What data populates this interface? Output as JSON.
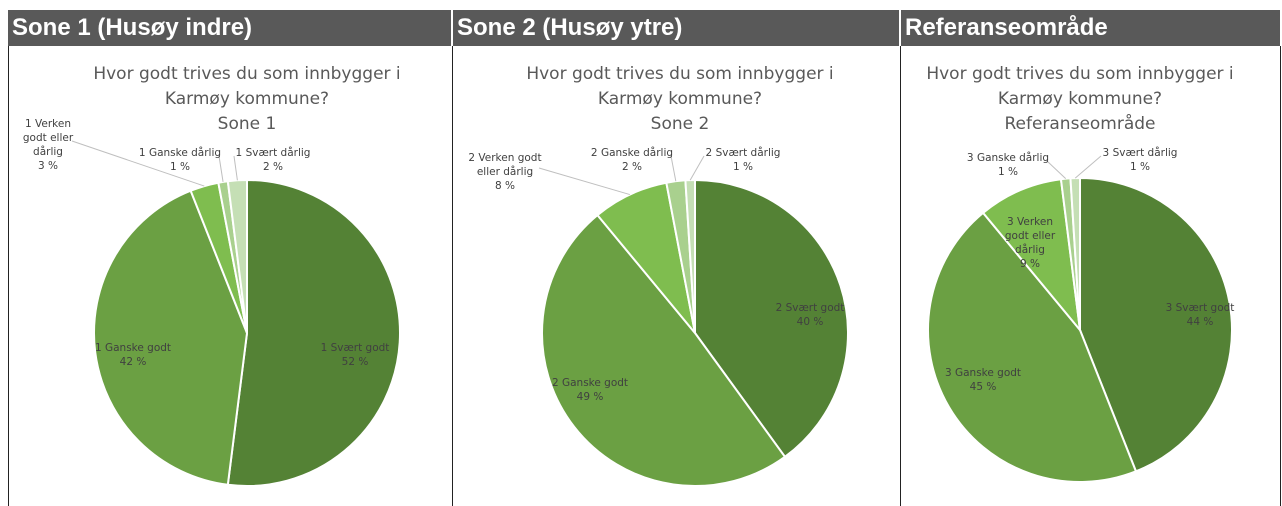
{
  "headers": [
    "Sone 1 (Husøy indre)",
    "Sone 2 (Husøy ytre)",
    "Referanseområde"
  ],
  "chart_data": [
    {
      "type": "pie",
      "title": [
        "Hvor godt trives du som innbygger i",
        "Karmøy kommune?"
      ],
      "subtitle": "Sone 1",
      "categories": [
        "1 Svært godt",
        "1 Ganske godt",
        "1 Verken godt eller dårlig",
        "1 Ganske dårlig",
        "1 Svært dårlig"
      ],
      "values": [
        52,
        42,
        3,
        1,
        2
      ],
      "value_labels": [
        "52 %",
        "42 %",
        "3 %",
        "1 %",
        "2 %"
      ],
      "colors": [
        "#548235",
        "#6ba043",
        "#7fbd4f",
        "#a9d08e",
        "#c5dfb5"
      ]
    },
    {
      "type": "pie",
      "title": [
        "Hvor godt trives du som innbygger i",
        "Karmøy kommune?"
      ],
      "subtitle": "Sone 2",
      "categories": [
        "2 Svært godt",
        "2 Ganske godt",
        "2 Verken godt eller dårlig",
        "2 Ganske dårlig",
        "2 Svært dårlig"
      ],
      "values": [
        40,
        49,
        8,
        2,
        1
      ],
      "value_labels": [
        "40 %",
        "49 %",
        "8 %",
        "2 %",
        "1 %"
      ],
      "colors": [
        "#548235",
        "#6ba043",
        "#7fbd4f",
        "#a9d08e",
        "#c5dfb5"
      ]
    },
    {
      "type": "pie",
      "title": [
        "Hvor godt trives du som innbygger i",
        "Karmøy kommune?"
      ],
      "subtitle": "Referanseområde",
      "categories": [
        "3 Svært godt",
        "3 Ganske godt",
        "3 Verken godt eller dårlig",
        "3 Ganske dårlig",
        "3 Svært dårlig"
      ],
      "values": [
        44,
        45,
        9,
        1,
        1
      ],
      "value_labels": [
        "44 %",
        "45 %",
        "9 %",
        "1 %",
        "1 %"
      ],
      "colors": [
        "#548235",
        "#6ba043",
        "#7fbd4f",
        "#a9d08e",
        "#c5dfb5"
      ]
    }
  ]
}
